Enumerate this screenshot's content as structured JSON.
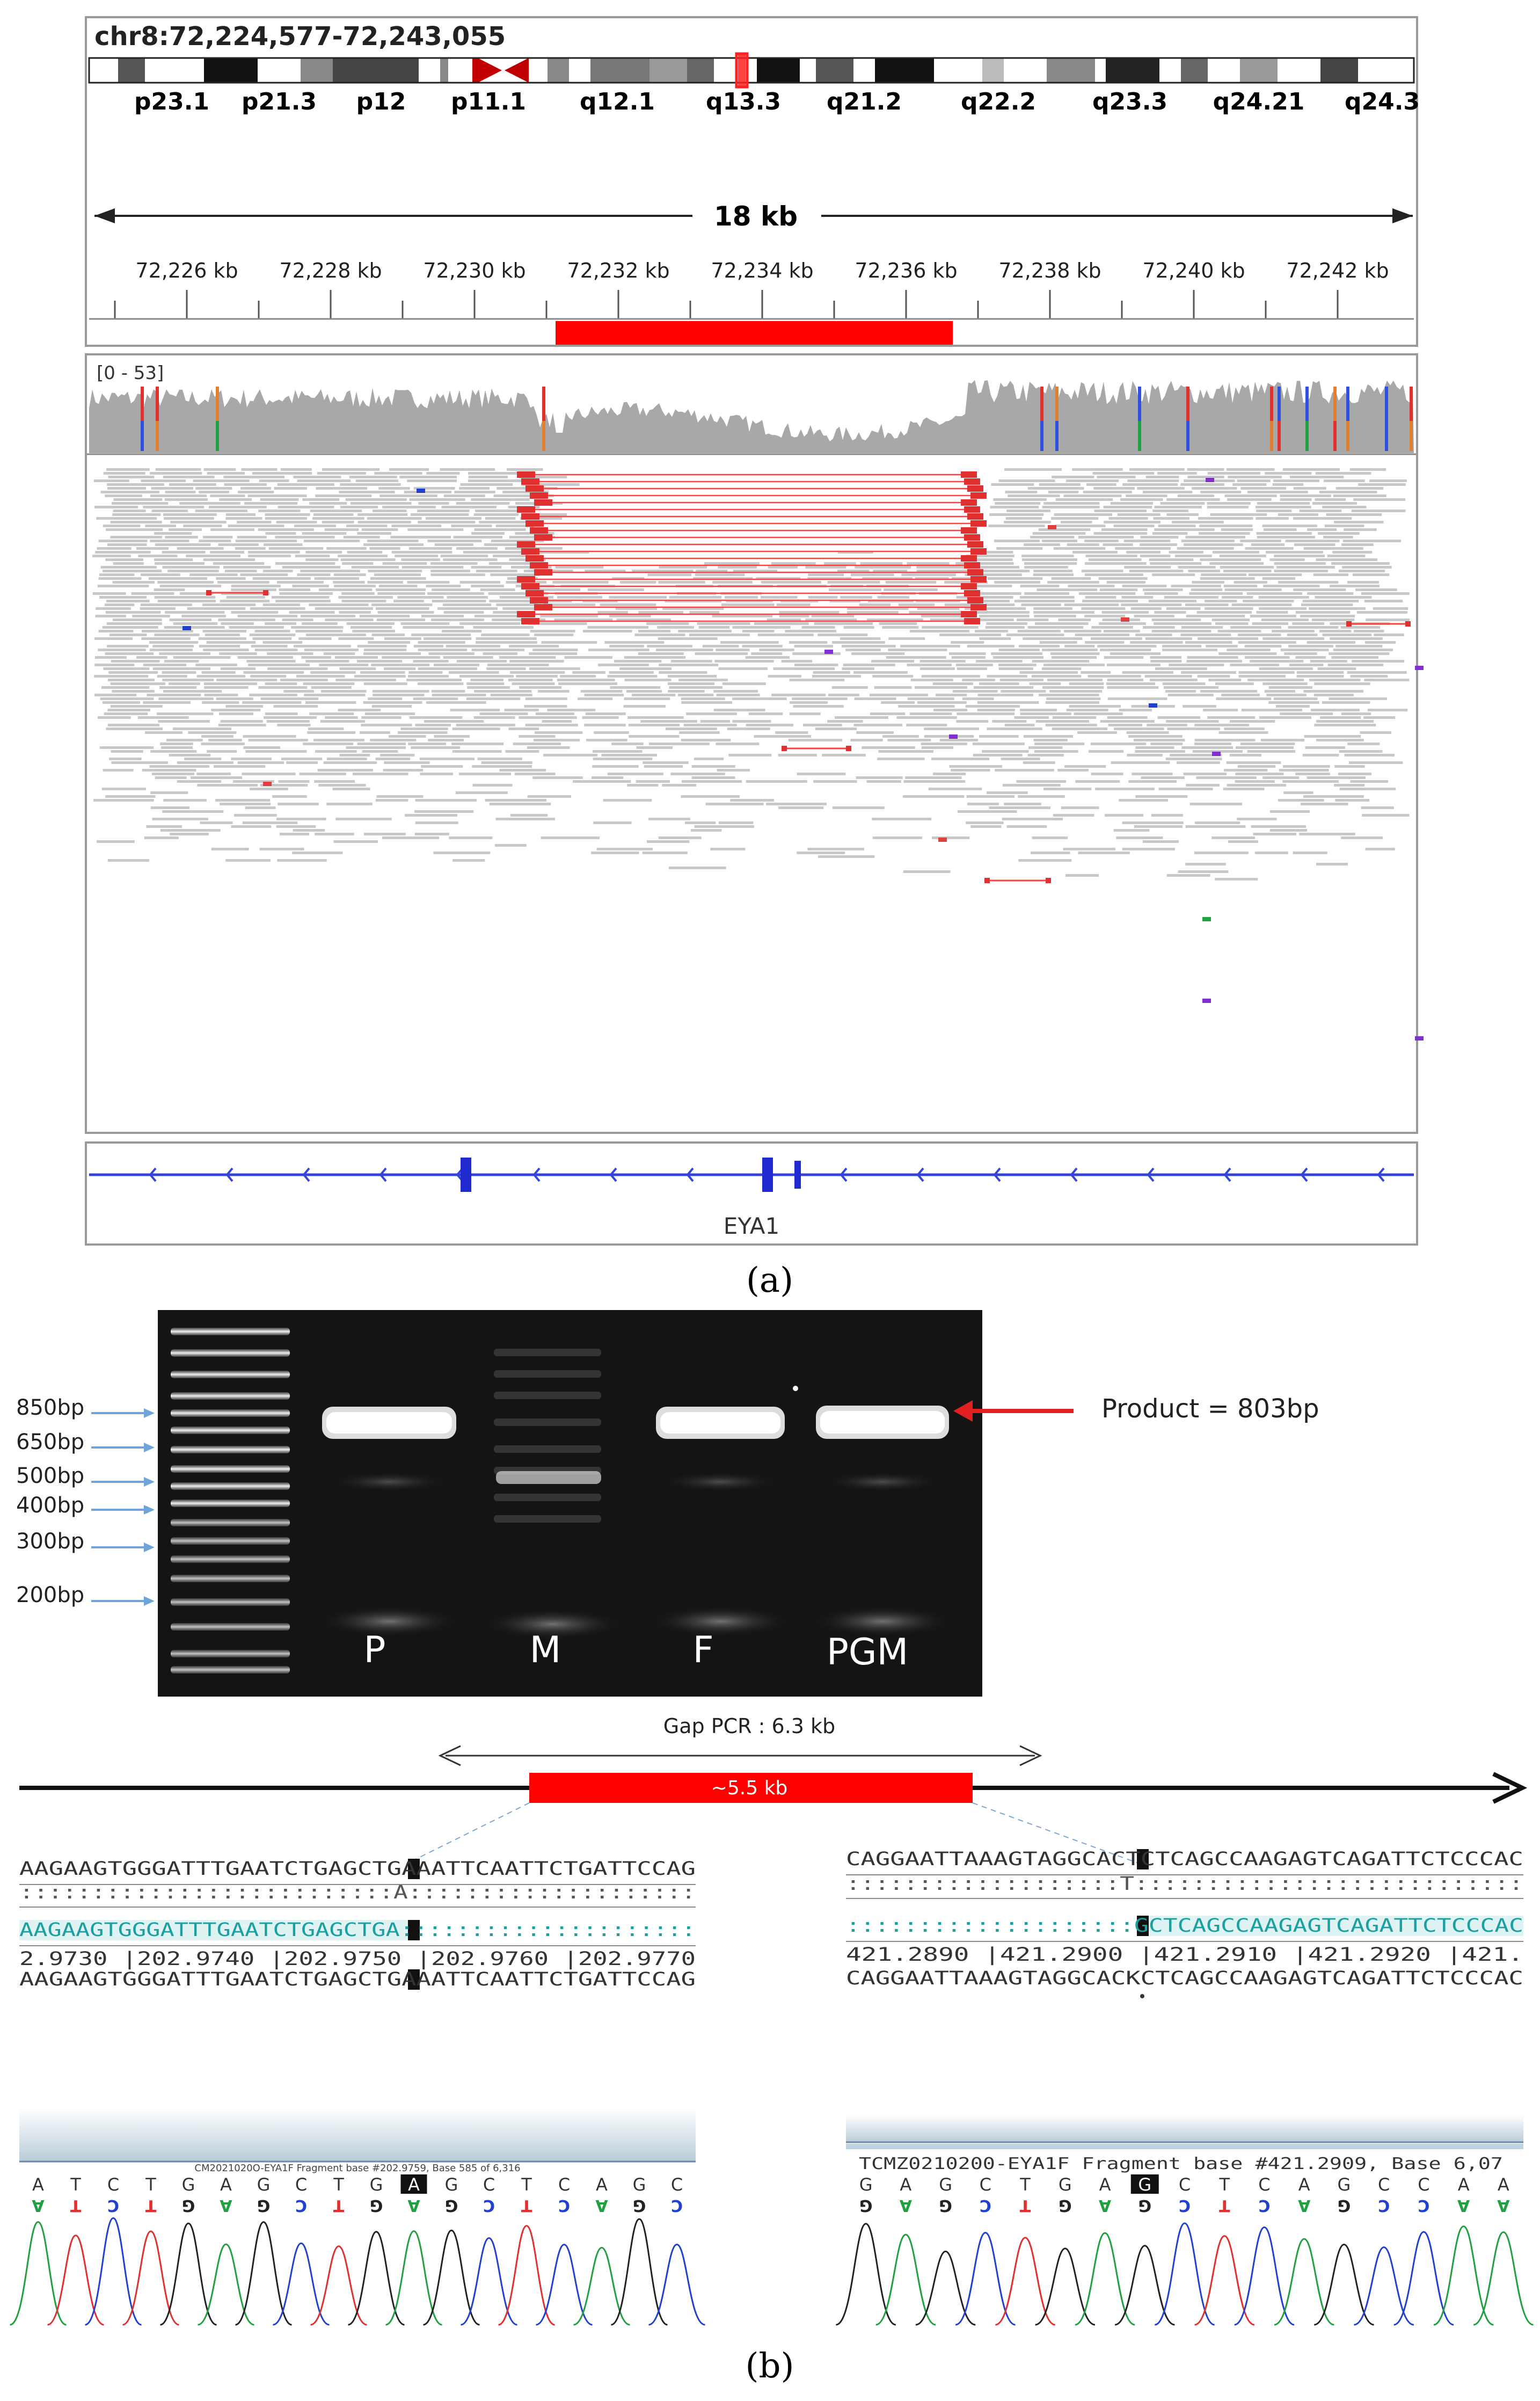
{
  "panel_a": {
    "locus": "chr8:72,224,577-72,243,055",
    "cytobands": [
      "p23.1",
      "p21.3",
      "p12",
      "p11.1",
      "q12.1",
      "q13.3",
      "q21.2",
      "q22.2",
      "q23.3",
      "q24.21",
      "q24.3"
    ],
    "scale_label": "18 kb",
    "ruler_ticks": [
      "72,226 kb",
      "72,228 kb",
      "72,230 kb",
      "72,232 kb",
      "72,234 kb",
      "72,236 kb",
      "72,238 kb",
      "72,240 kb",
      "72,242 kb"
    ],
    "coverage_range": "[0 - 53]",
    "gene_name": "EYA1",
    "caption": "(a)",
    "colors": {
      "deletion": "#ff0000",
      "reads": "#c8c8c8",
      "coverage": "#a8a8a8",
      "gene": "#1f2ad0"
    }
  },
  "panel_b": {
    "ladder_labels": [
      "850bp",
      "650bp",
      "500bp",
      "400bp",
      "300bp",
      "200bp"
    ],
    "lane_labels": [
      "P",
      "M",
      "F",
      "PGM"
    ],
    "product_label": "Product = 803bp",
    "gap_pcr_label": "Gap PCR : 6.3 kb",
    "deletion_label": "~5.5 kb",
    "left_alignment": {
      "ref": "AAGAAGTGGGATTTGAATCTGAGCTGAAATTCAATTCTGATTCCAG",
      "match": "::::::::::::::::::::::::::A::::::::::::::::::::",
      "query": "AAGAAGTGGGATTTGAATCTGAGCTGA:::::::::::::::::::::",
      "coords": "2.9730  |202.9740  |202.9750  |202.9760  |202.9770",
      "consensus": "AAGAAGTGGGATTTGAATCTGAGCTGAAATTCAATTCTGATTCCAG"
    },
    "right_alignment": {
      "ref": "CAGGAATTAAAGTAGGCACTCTCAGCCAAGAGTCAGATTCTCCCAC",
      "match": ":::::::::::::::::::T:::::::::::::::::::::::::::",
      "query": "::::::::::::::::::::GCTCAGCCAAGAGTCAGATTCTCCCAC",
      "coords": "421.2890  |421.2900  |421.2910  |421.2920  |421.",
      "consensus": "CAGGAATTAAAGTAGGCACKCTCAGCCAAGAGTCAGATTCTCCCAC"
    },
    "left_chrom": {
      "header": "CM2021020O-EYA1F Fragment base #202.9759, Base 585 of 6,316",
      "bases": [
        "A",
        "T",
        "C",
        "T",
        "G",
        "A",
        "G",
        "C",
        "T",
        "G",
        "A",
        "G",
        "C",
        "T",
        "C",
        "A",
        "G",
        "C"
      ]
    },
    "right_chrom": {
      "header": "TCMZ0210200-EYA1F Fragment base #421.2909, Base 6,07",
      "bases": [
        "G",
        "A",
        "G",
        "C",
        "T",
        "G",
        "A",
        "G",
        "C",
        "T",
        "C",
        "A",
        "G",
        "C",
        "C",
        "A",
        "A"
      ]
    },
    "caption": "(b)"
  }
}
